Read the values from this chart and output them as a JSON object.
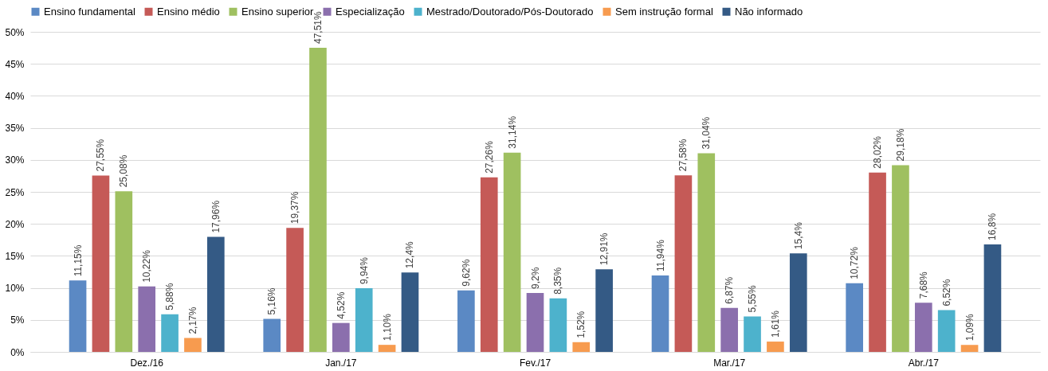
{
  "chart_data": {
    "type": "bar",
    "categories": [
      "Dez./16",
      "Jan./17",
      "Fev./17",
      "Mar./17",
      "Abr./17"
    ],
    "series": [
      {
        "name": "Ensino fundamental",
        "color": "#5b89c4",
        "values": [
          11.15,
          5.16,
          9.62,
          11.94,
          10.72
        ],
        "value_labels": [
          "11,15%",
          "5,16%",
          "9,62%",
          "11,94%",
          "10,72%"
        ]
      },
      {
        "name": "Ensino médio",
        "color": "#c55a57",
        "values": [
          27.55,
          19.37,
          27.26,
          27.58,
          28.02
        ],
        "value_labels": [
          "27,55%",
          "19,37%",
          "27,26%",
          "27,58%",
          "28,02%"
        ]
      },
      {
        "name": "Ensino superior",
        "color": "#9fc060",
        "values": [
          25.08,
          47.51,
          31.14,
          31.04,
          29.18
        ],
        "value_labels": [
          "25,08%",
          "47,51%",
          "31,14%",
          "31,04%",
          "29,18%"
        ]
      },
      {
        "name": "Especialização",
        "color": "#8b6fad",
        "values": [
          10.22,
          4.52,
          9.2,
          6.87,
          7.68
        ],
        "value_labels": [
          "10,22%",
          "4,52%",
          "9,2%",
          "6,87%",
          "7,68%"
        ]
      },
      {
        "name": "Mestrado/Doutorado/Pós-Doutorado",
        "color": "#4db2cc",
        "values": [
          5.88,
          9.94,
          8.35,
          5.55,
          6.52
        ],
        "value_labels": [
          "5,88%",
          "9,94%",
          "8,35%",
          "5,55%",
          "6,52%"
        ]
      },
      {
        "name": "Sem instrução formal",
        "color": "#f79b4f",
        "values": [
          2.17,
          1.1,
          1.52,
          1.61,
          1.09
        ],
        "value_labels": [
          "2,17%",
          "1,10%",
          "1,52%",
          "1,61%",
          "1,09%"
        ]
      },
      {
        "name": "Não informado",
        "color": "#345a85",
        "values": [
          17.96,
          12.4,
          12.91,
          15.4,
          16.8
        ],
        "value_labels": [
          "17,96%",
          "12,4%",
          "12,91%",
          "15,4%",
          "16,8%"
        ]
      }
    ],
    "ylim": [
      0,
      50
    ],
    "yticks": [
      {
        "value": 0,
        "label": "0%"
      },
      {
        "value": 5,
        "label": "5%"
      },
      {
        "value": 10,
        "label": "10%"
      },
      {
        "value": 15,
        "label": "15%"
      },
      {
        "value": 20,
        "label": "20%"
      },
      {
        "value": 25,
        "label": "25%"
      },
      {
        "value": 30,
        "label": "30%"
      },
      {
        "value": 35,
        "label": "35%"
      },
      {
        "value": 40,
        "label": "40%"
      },
      {
        "value": 45,
        "label": "45%"
      },
      {
        "value": 50,
        "label": "50%"
      }
    ],
    "grid": "y",
    "legend": "top"
  }
}
